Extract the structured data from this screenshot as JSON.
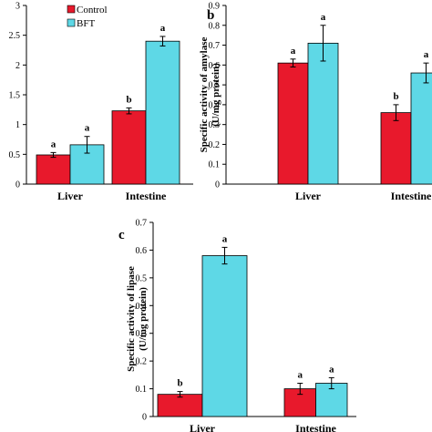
{
  "legend": [
    {
      "label": "Control",
      "color": "#e8192c"
    },
    {
      "label": "BFT",
      "color": "#5ed8e6"
    }
  ],
  "chart_data": [
    {
      "type": "bar",
      "panel_label": "",
      "ylabel_lines": [],
      "categories": [
        "Liver",
        "Intestine"
      ],
      "ylim": [
        0,
        3
      ],
      "yticks": [
        "0",
        "0.5",
        "1",
        "1.5",
        "2",
        "2.5",
        "3"
      ],
      "series": [
        {
          "name": "Control",
          "color": "#e8192c",
          "values": [
            0.49,
            1.23
          ],
          "errors": [
            0.04,
            0.05
          ],
          "letters": [
            "a",
            "b"
          ]
        },
        {
          "name": "BFT",
          "color": "#5ed8e6",
          "values": [
            0.66,
            2.4
          ],
          "errors": [
            0.14,
            0.08
          ],
          "letters": [
            "a",
            "a"
          ]
        }
      ]
    },
    {
      "type": "bar",
      "panel_label": "b",
      "ylabel_lines": [
        "Specific activity of amylase",
        "(U/mg protein)"
      ],
      "categories": [
        "Liver",
        "Intestine"
      ],
      "ylim": [
        0,
        0.9
      ],
      "yticks": [
        "0",
        "0.1",
        "0.2",
        "0.3",
        "0.4",
        "0.5",
        "0.6",
        "0.7",
        "0.8",
        "0.9"
      ],
      "series": [
        {
          "name": "Control",
          "color": "#e8192c",
          "values": [
            0.61,
            0.36
          ],
          "errors": [
            0.02,
            0.04
          ],
          "letters": [
            "a",
            "b"
          ]
        },
        {
          "name": "BFT",
          "color": "#5ed8e6",
          "values": [
            0.71,
            0.56
          ],
          "errors": [
            0.09,
            0.05
          ],
          "letters": [
            "a",
            "a"
          ]
        }
      ]
    },
    {
      "type": "bar",
      "panel_label": "c",
      "ylabel_lines": [
        "Specific activity of lipase",
        "(U/mg protein)"
      ],
      "categories": [
        "Liver",
        "Intestine"
      ],
      "ylim": [
        0,
        0.7
      ],
      "yticks": [
        "0",
        "0.1",
        "0.2",
        "0.3",
        "0.4",
        "0.5",
        "0.6",
        "0.7"
      ],
      "series": [
        {
          "name": "Control",
          "color": "#e8192c",
          "values": [
            0.08,
            0.1
          ],
          "errors": [
            0.01,
            0.02
          ],
          "letters": [
            "b",
            "a"
          ]
        },
        {
          "name": "BFT",
          "color": "#5ed8e6",
          "values": [
            0.58,
            0.12
          ],
          "errors": [
            0.03,
            0.02
          ],
          "letters": [
            "a",
            "a"
          ]
        }
      ]
    }
  ]
}
